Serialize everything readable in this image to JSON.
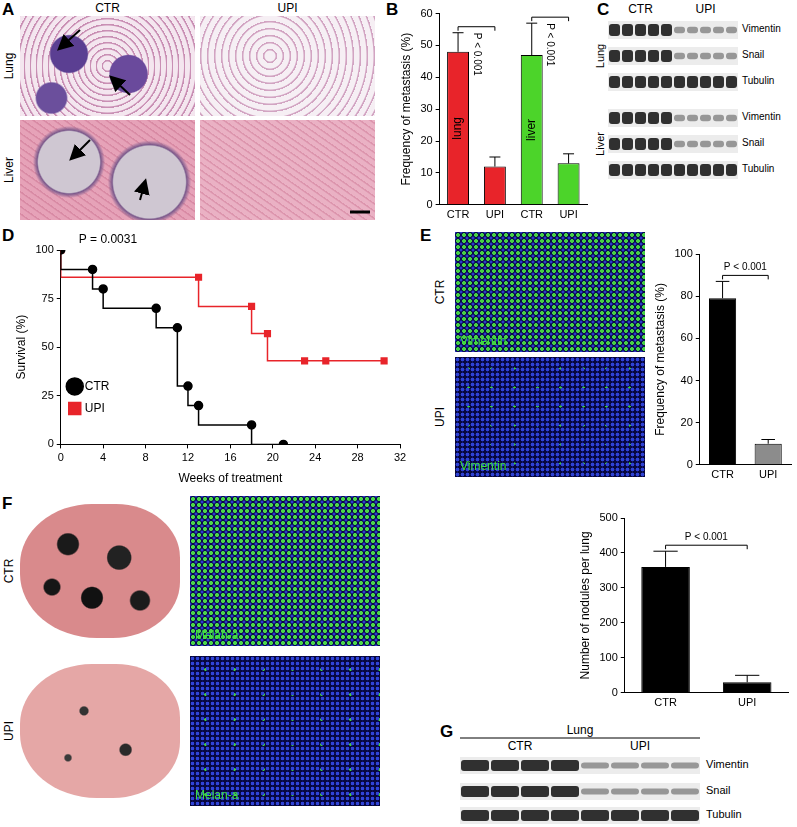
{
  "panels": [
    {
      "panel": "A",
      "columns": [
        "CTR",
        "UPI"
      ],
      "rows": [
        "Lung",
        "Liver"
      ]
    },
    {
      "panel": "C",
      "columns": [
        "CTR",
        "UPI"
      ],
      "groups": [
        {
          "tissue": "Lung",
          "proteins": [
            "Vimentin",
            "Snail",
            "Tubulin"
          ]
        },
        {
          "tissue": "Liver",
          "proteins": [
            "Vimentin",
            "Snail",
            "Tubulin"
          ]
        }
      ]
    },
    {
      "panel": "E",
      "rows": [
        "CTR",
        "UPI"
      ],
      "stain": "Vimentin"
    },
    {
      "panel": "F",
      "rows": [
        "CTR",
        "UPI"
      ],
      "stain": "Melan-a"
    },
    {
      "panel": "G",
      "columns": [
        "CTR",
        "UPI"
      ],
      "groups": [
        {
          "tissue": "Lung",
          "proteins": [
            "Vimentin",
            "Snail",
            "Tubulin"
          ]
        }
      ]
    }
  ],
  "chart_data": [
    {
      "panel": "B",
      "type": "bar",
      "ylabel": "Frequency of metastasis (%)",
      "categories": [
        "CTR",
        "UPI",
        "CTR",
        "UPI"
      ],
      "values": [
        48,
        12,
        47,
        13
      ],
      "errors": [
        6,
        3,
        10,
        3
      ],
      "colors": [
        "#e8242a",
        "#e8242a",
        "#4cd42a",
        "#4cd42a"
      ],
      "ylim": [
        0,
        60
      ],
      "yticks": [
        0,
        10,
        20,
        30,
        40,
        50,
        60
      ],
      "grid": false,
      "annotations": [
        {
          "text": "lung",
          "at": 0
        },
        {
          "text": "liver",
          "at": 2
        }
      ],
      "significance": [
        {
          "text": "P < 0.001",
          "from": 0,
          "to": 1
        },
        {
          "text": "P < 0.001",
          "from": 2,
          "to": 3
        }
      ]
    },
    {
      "panel": "D",
      "type": "line",
      "line_style": "step",
      "xlabel": "Weeks of treatment",
      "ylabel": "Survival (%)",
      "xlim": [
        0,
        32
      ],
      "xticks": [
        0,
        4,
        8,
        12,
        16,
        20,
        24,
        28,
        32
      ],
      "ylim": [
        0,
        100
      ],
      "yticks": [
        0,
        25,
        50,
        75,
        100
      ],
      "grid": false,
      "legend": "upper right",
      "annotations": [
        {
          "text": "P = 0.0031"
        }
      ],
      "series": [
        {
          "name": "CTR",
          "color": "#000000",
          "marker": "circle",
          "x": [
            0,
            3,
            4,
            9,
            11,
            12,
            13,
            18,
            21
          ],
          "values": [
            100,
            90,
            80,
            70,
            60,
            30,
            20,
            10,
            0
          ]
        },
        {
          "name": "UPI",
          "color": "#e8242a",
          "marker": "square",
          "x": [
            0,
            13,
            18,
            19.5,
            23,
            25,
            30.5
          ],
          "values": [
            100,
            86,
            71,
            57,
            43,
            43,
            43
          ]
        }
      ]
    },
    {
      "panel": "E",
      "type": "bar",
      "ylabel": "Frequency of metastasis (%)",
      "categories": [
        "CTR",
        "UPI"
      ],
      "values": [
        79,
        10
      ],
      "errors": [
        8,
        2
      ],
      "colors": [
        "#000000",
        "#8c8c8c"
      ],
      "ylim": [
        0,
        100
      ],
      "yticks": [
        0,
        20,
        40,
        60,
        80,
        100
      ],
      "grid": false,
      "significance": [
        {
          "text": "P < 0.001",
          "from": 0,
          "to": 1
        }
      ]
    },
    {
      "panel": "F",
      "type": "bar",
      "ylabel": "Number of nodules per lung",
      "categories": [
        "CTR",
        "UPI"
      ],
      "values": [
        360,
        30
      ],
      "errors": [
        45,
        20
      ],
      "colors": [
        "#000000",
        "#000000"
      ],
      "ylim": [
        0,
        500
      ],
      "yticks": [
        0,
        100,
        200,
        300,
        400,
        500
      ],
      "grid": false,
      "significance": [
        {
          "text": "P < 0.001",
          "from": 0,
          "to": 1
        }
      ]
    }
  ]
}
